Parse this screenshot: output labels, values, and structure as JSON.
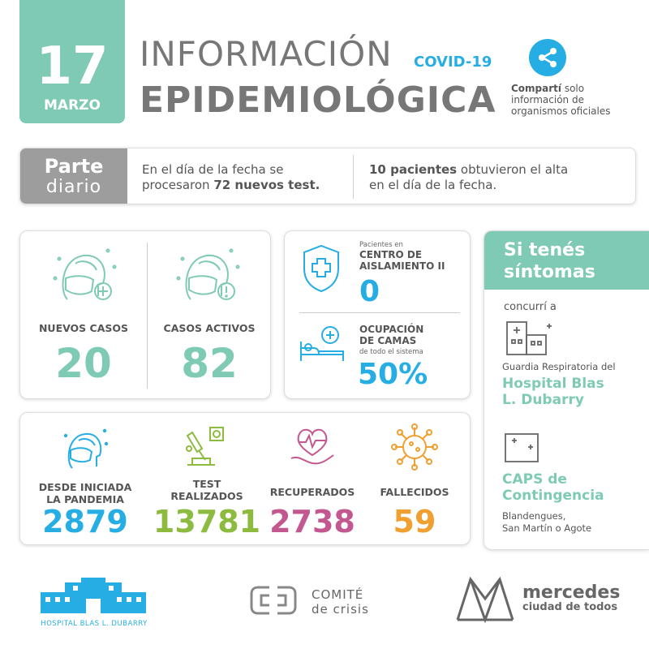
{
  "header": {
    "day": "17",
    "month": "MARZO",
    "title_line1": "INFORMACIÓN",
    "title_covid": "COVID-19",
    "title_line2": "EPIDEMIOLÓGICA",
    "share_bold": "Compartí",
    "share_rest1": " solo",
    "share_line2": "información de",
    "share_line3": "organismos oficiales"
  },
  "parte": {
    "label1": "Parte",
    "label2": "diario",
    "left_a": "En el día de la fecha se",
    "left_b": "procesaron ",
    "left_bold": "72 nuevos test.",
    "right_bold": "10 pacientes",
    "right_a": " obtuvieron el alta",
    "right_b": "en el día de la fecha."
  },
  "casos": {
    "nuevos_label": "NUEVOS CASOS",
    "nuevos_value": "20",
    "activos_label": "CASOS ACTIVOS",
    "activos_value": "82"
  },
  "aislamiento": {
    "small": "Pacientes en",
    "title1": "CENTRO DE",
    "title2": "AISLAMIENTO II",
    "value": "0"
  },
  "camas": {
    "title1": "OCUPACIÓN",
    "title2": "DE CAMAS",
    "small": "de todo el sistema",
    "value": "50%"
  },
  "totales": {
    "pandemia_label1": "DESDE INICIADA",
    "pandemia_label2": "LA PANDEMIA",
    "pandemia_value": "2879",
    "test_label1": "TEST",
    "test_label2": "REALIZADOS",
    "test_value": "13781",
    "recuperados_label": "RECUPERADOS",
    "recuperados_value": "2738",
    "fallecidos_label": "FALLECIDOS",
    "fallecidos_value": "59"
  },
  "sintomas": {
    "title1": "Si tenés",
    "title2": "síntomas",
    "concurri": "concurrí a",
    "guardia": "Guardia Respiratoria del",
    "hospital1": "Hospital Blas",
    "hospital2": "L. Dubarry",
    "caps1": "CAPS de",
    "caps2": "Contingencia",
    "barrios1": "Blandengues,",
    "barrios2": "San Martín o Agote"
  },
  "footer": {
    "hospital": "HOSPITAL BLAS L. DUBARRY",
    "comite1": "COMITÉ",
    "comite2": "de crisis",
    "mercedes1": "mercedes",
    "mercedes2": "ciudad de todos"
  },
  "colors": {
    "green": "#7fcab5",
    "blue": "#26aee4",
    "olive": "#8dbb3f",
    "pink": "#c2588f",
    "orange": "#f0a030",
    "gray": "#9d9d9d"
  }
}
